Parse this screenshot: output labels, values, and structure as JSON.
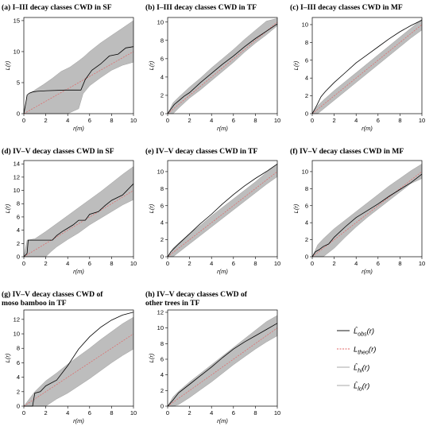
{
  "colors": {
    "envelope": "#bdbdbd",
    "observed": "#000000",
    "theoretical": "#e06666",
    "envelope_edge": "#9e9e9e"
  },
  "legend": {
    "items": [
      {
        "key": "obs",
        "label": "L̂obs(r)",
        "base": "L̂",
        "sub": "obs",
        "color": "#000000",
        "dash": false
      },
      {
        "key": "theo",
        "label": "Ltheo(r)",
        "base": "L",
        "sub": "theo",
        "color": "#e06666",
        "dash": true
      },
      {
        "key": "hi",
        "label": "L̂hi(r)",
        "base": "L̂",
        "sub": "hi",
        "color": "#9e9e9e",
        "dash": false
      },
      {
        "key": "lo",
        "label": "L̂lo(r)",
        "base": "L̂",
        "sub": "lo",
        "color": "#9e9e9e",
        "dash": false
      }
    ],
    "suffix": "(r)"
  },
  "chart_data": [
    {
      "type": "line",
      "id": "a",
      "title": "(a) I–III decay classes CWD in SF",
      "xlabel": "r(m)",
      "ylabel": "L(r)",
      "xlim": [
        0,
        10
      ],
      "ylim": [
        0,
        15.5
      ],
      "xticks": [
        0,
        2,
        4,
        6,
        8,
        10
      ],
      "yticks": [
        0,
        5,
        10,
        15
      ],
      "series": [
        {
          "role": "theo",
          "x": [
            0,
            10
          ],
          "y": [
            0,
            10
          ]
        },
        {
          "role": "obs",
          "x": [
            0,
            0.2,
            0.3,
            0.5,
            0.8,
            1.2,
            2.1,
            3.8,
            5.2,
            5.6,
            6.2,
            7.0,
            7.8,
            8.6,
            9.3,
            10
          ],
          "y": [
            0,
            2.0,
            3.0,
            3.3,
            3.5,
            3.6,
            3.7,
            3.8,
            3.8,
            5.5,
            7.0,
            8.0,
            9.3,
            9.6,
            10.6,
            10.8
          ]
        },
        {
          "role": "hi",
          "x": [
            0,
            0.3,
            0.6,
            1.0,
            1.8,
            2.6,
            3.4,
            4.2,
            5.0,
            5.5,
            6.0,
            7.0,
            8.0,
            9.0,
            10
          ],
          "y": [
            0,
            2.8,
            3.3,
            3.8,
            4.7,
            5.7,
            6.8,
            7.5,
            8.5,
            9.2,
            10.0,
            11.4,
            12.6,
            13.8,
            15.0
          ]
        },
        {
          "role": "lo",
          "x": [
            0,
            0.5,
            1.0,
            2.0,
            3.0,
            4.0,
            5.0,
            5.4,
            6.0,
            7.0,
            8.0,
            9.0,
            10
          ],
          "y": [
            0,
            0,
            0,
            0,
            0,
            0,
            0.8,
            3.2,
            4.5,
            5.8,
            7.0,
            7.8,
            8.3
          ]
        }
      ]
    },
    {
      "type": "line",
      "id": "b",
      "title": "(b) I–III decay classes CWD in TF",
      "xlabel": "r(m)",
      "ylabel": "L(r)",
      "xlim": [
        0,
        10
      ],
      "ylim": [
        0,
        10.5
      ],
      "xticks": [
        0,
        2,
        4,
        6,
        8,
        10
      ],
      "yticks": [
        0,
        2,
        4,
        6,
        8,
        10
      ],
      "series": [
        {
          "role": "theo",
          "x": [
            0,
            10
          ],
          "y": [
            0,
            10
          ]
        },
        {
          "role": "obs",
          "x": [
            0,
            0.3,
            0.6,
            1.0,
            1.5,
            2,
            3,
            4,
            5,
            6,
            7,
            8,
            9,
            10
          ],
          "y": [
            0,
            0.5,
            1.0,
            1.4,
            1.9,
            2.3,
            3.4,
            4.4,
            5.4,
            6.3,
            7.3,
            8.2,
            9.0,
            9.8
          ]
        },
        {
          "role": "hi",
          "x": [
            0,
            0.5,
            1,
            2,
            3,
            4,
            5,
            6,
            7,
            8,
            9,
            10
          ],
          "y": [
            0,
            1.2,
            1.8,
            2.9,
            3.9,
            5.0,
            6.0,
            7.0,
            8.1,
            9.1,
            10.1,
            10.4
          ]
        },
        {
          "role": "lo",
          "x": [
            0,
            0.5,
            1,
            2,
            3,
            4,
            5,
            6,
            7,
            8,
            9,
            10
          ],
          "y": [
            0,
            0,
            0.6,
            1.7,
            2.6,
            3.6,
            4.6,
            5.6,
            6.7,
            7.7,
            8.6,
            9.6
          ]
        }
      ]
    },
    {
      "type": "line",
      "id": "c",
      "title": "(c) I–III decay classes CWD in MF",
      "xlabel": "r(m)",
      "ylabel": "L(r)",
      "xlim": [
        0,
        10
      ],
      "ylim": [
        0,
        10.8
      ],
      "xticks": [
        0,
        2,
        4,
        6,
        8,
        10
      ],
      "yticks": [
        0,
        2,
        4,
        6,
        8,
        10
      ],
      "series": [
        {
          "role": "theo",
          "x": [
            0,
            10
          ],
          "y": [
            0,
            10
          ]
        },
        {
          "role": "obs",
          "x": [
            0,
            0.4,
            0.8,
            1.2,
            2,
            3,
            4,
            5,
            6,
            7,
            8,
            9,
            10
          ],
          "y": [
            0,
            0.9,
            1.9,
            2.5,
            3.5,
            4.6,
            5.7,
            6.6,
            7.5,
            8.4,
            9.2,
            9.9,
            10.5
          ]
        },
        {
          "role": "hi",
          "x": [
            0,
            0.5,
            1,
            2,
            3,
            4,
            5,
            6,
            7,
            8,
            9,
            10
          ],
          "y": [
            0,
            0.9,
            1.5,
            2.6,
            3.6,
            4.6,
            5.6,
            6.6,
            7.6,
            8.6,
            9.6,
            10.6
          ]
        },
        {
          "role": "lo",
          "x": [
            0,
            0.5,
            1,
            2,
            3,
            4,
            5,
            6,
            7,
            8,
            9,
            10
          ],
          "y": [
            0,
            0,
            0.5,
            1.5,
            2.5,
            3.5,
            4.5,
            5.5,
            6.5,
            7.5,
            8.5,
            9.4
          ]
        }
      ]
    },
    {
      "type": "line",
      "id": "d",
      "title": "(d) IV–V decay classes CWD in SF",
      "xlabel": "r(m)",
      "ylabel": "L(r)",
      "xlim": [
        0,
        10
      ],
      "ylim": [
        0,
        14.5
      ],
      "xticks": [
        0,
        2,
        4,
        6,
        8,
        10
      ],
      "yticks": [
        0,
        2,
        4,
        6,
        8,
        10,
        12,
        14
      ],
      "series": [
        {
          "role": "theo",
          "x": [
            0,
            10
          ],
          "y": [
            0,
            10
          ]
        },
        {
          "role": "obs",
          "x": [
            0,
            0.3,
            0.4,
            1.0,
            2.0,
            2.6,
            3.0,
            3.5,
            4.0,
            4.5,
            5.0,
            5.6,
            6.0,
            6.8,
            7.4,
            8.0,
            9.0,
            10
          ],
          "y": [
            0,
            0.5,
            2.5,
            2.5,
            2.5,
            2.5,
            3.2,
            3.8,
            4.3,
            4.8,
            5.5,
            5.5,
            6.4,
            6.8,
            7.7,
            8.5,
            9.3,
            11.0
          ]
        },
        {
          "role": "hi",
          "x": [
            0,
            0.3,
            1.0,
            2.0,
            3.0,
            4.0,
            5.0,
            6.0,
            7.0,
            8.0,
            9.0,
            10
          ],
          "y": [
            0,
            2.5,
            2.7,
            3.8,
            5.0,
            6.2,
            7.4,
            8.6,
            9.8,
            11.1,
            12.4,
            13.6
          ]
        },
        {
          "role": "lo",
          "x": [
            0,
            1.0,
            2.0,
            2.5,
            3.0,
            4.0,
            5.0,
            6.0,
            7.0,
            8.0,
            9.0,
            10
          ],
          "y": [
            0,
            0,
            0,
            0.8,
            1.5,
            2.6,
            3.6,
            4.8,
            5.8,
            6.8,
            7.8,
            8.6
          ]
        }
      ]
    },
    {
      "type": "line",
      "id": "e",
      "title": "(e) IV–V decay classes CWD in TF",
      "xlabel": "r(m)",
      "ylabel": "L(r)",
      "xlim": [
        0,
        10
      ],
      "ylim": [
        0,
        11.3
      ],
      "xticks": [
        0,
        2,
        4,
        6,
        8,
        10
      ],
      "yticks": [
        0,
        2,
        4,
        6,
        8,
        10
      ],
      "series": [
        {
          "role": "theo",
          "x": [
            0,
            10
          ],
          "y": [
            0,
            10
          ]
        },
        {
          "role": "obs",
          "x": [
            0,
            0.3,
            0.6,
            1,
            2,
            3,
            4,
            5,
            6,
            7,
            8,
            9,
            10
          ],
          "y": [
            0,
            0.6,
            1.0,
            1.5,
            2.7,
            3.9,
            5.0,
            6.2,
            7.3,
            8.3,
            9.2,
            10.0,
            10.9
          ]
        },
        {
          "role": "hi",
          "x": [
            0,
            0.5,
            1,
            2,
            3,
            4,
            5,
            6,
            7,
            8,
            9,
            10
          ],
          "y": [
            0,
            1.0,
            1.6,
            2.7,
            3.7,
            4.8,
            5.8,
            6.8,
            7.8,
            8.8,
            9.9,
            10.9
          ]
        },
        {
          "role": "lo",
          "x": [
            0,
            0.5,
            1,
            2,
            3,
            4,
            5,
            6,
            7,
            8,
            9,
            10
          ],
          "y": [
            0,
            0,
            0.5,
            1.5,
            2.5,
            3.5,
            4.5,
            5.5,
            6.5,
            7.5,
            8.5,
            9.4
          ]
        }
      ]
    },
    {
      "type": "line",
      "id": "f",
      "title": "(f) IV–V decay classes CWD in MF",
      "xlabel": "r(m)",
      "ylabel": "L(r)",
      "xlim": [
        0,
        10
      ],
      "ylim": [
        0,
        11.3
      ],
      "xticks": [
        0,
        2,
        4,
        6,
        8,
        10
      ],
      "yticks": [
        0,
        2,
        4,
        6,
        8,
        10
      ],
      "series": [
        {
          "role": "theo",
          "x": [
            0,
            10
          ],
          "y": [
            0,
            10
          ]
        },
        {
          "role": "obs",
          "x": [
            0,
            0.3,
            0.6,
            1,
            1.5,
            2,
            3,
            4,
            5,
            6,
            7,
            8,
            9,
            10
          ],
          "y": [
            0,
            0.6,
            0.8,
            1.2,
            1.5,
            2.3,
            3.5,
            4.6,
            5.4,
            6.2,
            7.1,
            7.9,
            8.7,
            9.7
          ]
        },
        {
          "role": "hi",
          "x": [
            0,
            0.5,
            1,
            2,
            3,
            4,
            5,
            6,
            7,
            8,
            9,
            10
          ],
          "y": [
            0,
            1.4,
            2.1,
            3.3,
            4.3,
            5.3,
            6.3,
            7.3,
            8.3,
            9.2,
            10.1,
            10.9
          ]
        },
        {
          "role": "lo",
          "x": [
            0,
            0.5,
            1,
            2,
            3,
            4,
            5,
            6,
            7,
            8,
            9,
            10
          ],
          "y": [
            0,
            0,
            0,
            1.0,
            2.3,
            3.5,
            4.6,
            5.6,
            6.6,
            7.6,
            8.6,
            9.2
          ]
        }
      ]
    },
    {
      "type": "line",
      "id": "g",
      "title": "(g) IV–V decay classes CWD of moso bamboo in TF",
      "title_lines": [
        "(g) IV–V decay classes CWD of",
        "moso bamboo in TF"
      ],
      "xlabel": "r(m)",
      "ylabel": "L(r)",
      "xlim": [
        0,
        10
      ],
      "ylim": [
        0,
        13.3
      ],
      "xticks": [
        0,
        2,
        4,
        6,
        8,
        10
      ],
      "yticks": [
        0,
        2,
        4,
        6,
        8,
        10,
        12
      ],
      "series": [
        {
          "role": "theo",
          "x": [
            0,
            10
          ],
          "y": [
            0,
            10
          ]
        },
        {
          "role": "obs",
          "x": [
            0,
            0.8,
            1.0,
            1.5,
            2,
            3,
            4,
            5,
            6,
            7,
            8,
            9,
            10
          ],
          "y": [
            0,
            0,
            1.8,
            2.0,
            2.8,
            3.6,
            5.6,
            7.9,
            9.6,
            10.9,
            11.9,
            12.6,
            13.0
          ]
        },
        {
          "role": "hi",
          "x": [
            0,
            0.5,
            1,
            2,
            3,
            4,
            5,
            6,
            7,
            8,
            9,
            10
          ],
          "y": [
            0,
            1.0,
            2.0,
            3.5,
            4.6,
            5.8,
            6.9,
            8.0,
            9.2,
            10.3,
            11.4,
            12.3
          ]
        },
        {
          "role": "lo",
          "x": [
            0,
            1,
            2,
            3,
            4,
            5,
            6,
            7,
            8,
            9,
            10
          ],
          "y": [
            0,
            0,
            0,
            1.0,
            1.8,
            2.8,
            3.8,
            4.9,
            6.0,
            7.0,
            7.9
          ]
        }
      ]
    },
    {
      "type": "line",
      "id": "h",
      "title": "(h) IV–V decay classes CWD of other trees in TF",
      "title_lines": [
        "(h) IV–V decay classes CWD of",
        "other trees in TF"
      ],
      "xlabel": "r(m)",
      "ylabel": "L(r)",
      "xlim": [
        0,
        10
      ],
      "ylim": [
        0,
        12.3
      ],
      "xticks": [
        0,
        2,
        4,
        6,
        8,
        10
      ],
      "yticks": [
        0,
        2,
        4,
        6,
        8,
        10,
        12
      ],
      "series": [
        {
          "role": "theo",
          "x": [
            0,
            10
          ],
          "y": [
            0,
            10
          ]
        },
        {
          "role": "obs",
          "x": [
            0,
            0.5,
            1,
            2,
            3,
            4,
            5,
            6,
            7,
            8,
            9,
            10
          ],
          "y": [
            0,
            0.8,
            1.7,
            2.8,
            3.9,
            5.0,
            6.2,
            7.3,
            8.2,
            9.0,
            9.8,
            10.6
          ]
        },
        {
          "role": "hi",
          "x": [
            0,
            0.5,
            1,
            2,
            3,
            4,
            5,
            6,
            7,
            8,
            9,
            10
          ],
          "y": [
            0,
            1.2,
            1.9,
            3.1,
            4.2,
            5.3,
            6.4,
            7.5,
            8.6,
            9.7,
            10.8,
            11.6
          ]
        },
        {
          "role": "lo",
          "x": [
            0,
            0.5,
            1,
            2,
            3,
            4,
            5,
            6,
            7,
            8,
            9,
            10
          ],
          "y": [
            0,
            0,
            0.2,
            1.1,
            2.1,
            3.1,
            4.2,
            5.3,
            6.3,
            7.3,
            8.2,
            9.0
          ]
        }
      ]
    }
  ]
}
